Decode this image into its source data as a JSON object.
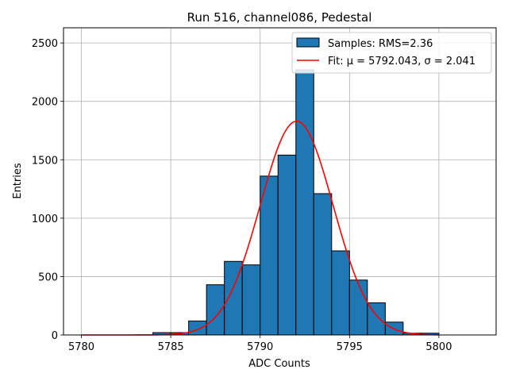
{
  "chart_data": {
    "type": "bar",
    "title": "Run 516, channel086, Pedestal",
    "xlabel": "ADC Counts",
    "ylabel": "Entries",
    "xlim": [
      5779,
      5803.2
    ],
    "ylim": [
      0,
      2630
    ],
    "xticks": [
      5780,
      5785,
      5790,
      5795,
      5800
    ],
    "yticks": [
      0,
      500,
      1000,
      1500,
      2000,
      2500
    ],
    "grid": true,
    "legend_position": "top-right",
    "histogram": {
      "name": "Samples: RMS=2.36",
      "bin_edges": [
        5784,
        5785,
        5786,
        5787,
        5788,
        5789,
        5790,
        5791,
        5792,
        5793,
        5794,
        5795,
        5796,
        5797,
        5798,
        5799,
        5800
      ],
      "counts": [
        20,
        20,
        120,
        430,
        630,
        600,
        1360,
        1540,
        2270,
        1210,
        720,
        470,
        275,
        110,
        15,
        15
      ],
      "color": "#1f77b4",
      "edgecolor": "#000000"
    },
    "fit": {
      "name": "Fit: μ = 5792.043, σ = 2.041",
      "mu": 5792.043,
      "sigma": 2.041,
      "amplitude": 1830,
      "x_range": [
        5780,
        5800
      ],
      "color": "#ff0000"
    }
  }
}
